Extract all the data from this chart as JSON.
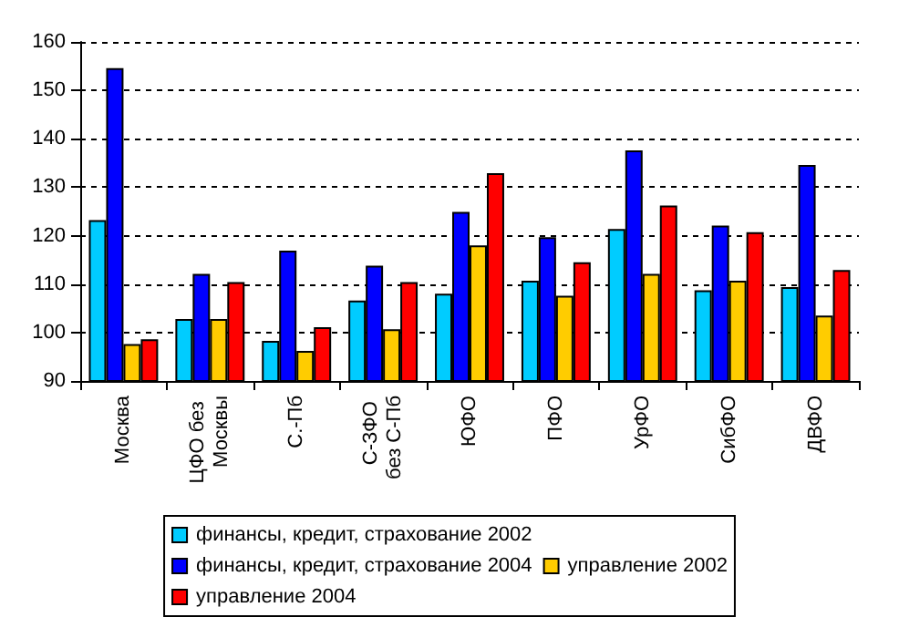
{
  "chart_data": {
    "type": "bar",
    "categories": [
      "Москва",
      "ЦФО без Москвы",
      "С.-Пб",
      "С-ЗФО без С-Пб",
      "ЮФО",
      "ПФО",
      "УрФО",
      "СибФО",
      "ДВФО"
    ],
    "series": [
      {
        "name": "финансы, кредит, страхование 2002",
        "color": "#00ccff",
        "values": [
          123.2,
          102.8,
          98.3,
          106.6,
          108.0,
          110.7,
          121.4,
          108.7,
          109.4
        ]
      },
      {
        "name": "финансы, кредит, страхование 2004",
        "color": "#0000ff",
        "values": [
          154.6,
          112.1,
          116.9,
          113.8,
          124.9,
          119.7,
          137.6,
          122.1,
          134.6
        ]
      },
      {
        "name": "управление 2002",
        "color": "#ffcc00",
        "values": [
          97.6,
          102.8,
          96.2,
          100.7,
          118.0,
          107.6,
          112.1,
          110.7,
          103.5
        ]
      },
      {
        "name": "управление 2004",
        "color": "#ff0000",
        "values": [
          98.6,
          110.4,
          101.1,
          110.4,
          132.9,
          114.5,
          126.2,
          120.7,
          112.9
        ]
      }
    ],
    "ylim": [
      90,
      160
    ],
    "yticks": [
      90,
      100,
      110,
      120,
      130,
      140,
      150,
      160
    ],
    "grid": "y",
    "legend": "bottom"
  }
}
